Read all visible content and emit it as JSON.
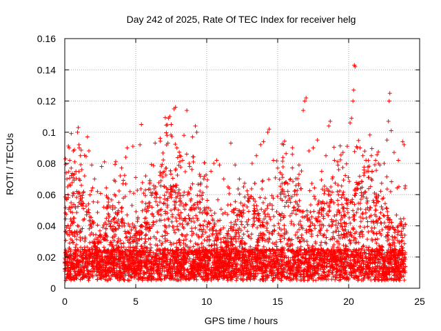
{
  "chart_data": {
    "type": "scatter",
    "title": "Day 242 of 2025, Rate Of TEC Index for receiver helg",
    "xlabel": "GPS time / hours",
    "ylabel": "ROTI / TECUs",
    "xlim": [
      0,
      25
    ],
    "ylim": [
      0,
      0.16
    ],
    "x_ticks": [
      0,
      5,
      10,
      15,
      20,
      25
    ],
    "y_ticks": [
      0,
      0.02,
      0.04,
      0.06,
      0.08,
      0.1,
      0.12,
      0.14,
      0.16
    ],
    "x_tick_labels": [
      "0",
      "5",
      "10",
      "15",
      "20",
      "25"
    ],
    "y_tick_labels": [
      "0",
      "0.02",
      "0.04",
      "0.06",
      "0.08",
      "0.1",
      "0.12",
      "0.14",
      "0.16"
    ],
    "grid": true,
    "marker": "+",
    "color": "#ff0000",
    "data_range_x": [
      0,
      24
    ],
    "series": [
      {
        "points": [
          [
            0.05,
            0.083
          ],
          [
            0.1,
            0.074
          ],
          [
            0.15,
            0.07
          ],
          [
            0.2,
            0.065
          ],
          [
            0.25,
            0.058
          ],
          [
            0.3,
            0.09
          ],
          [
            0.35,
            0.082
          ],
          [
            0.45,
            0.077
          ],
          [
            0.6,
            0.088
          ],
          [
            0.7,
            0.081
          ],
          [
            0.9,
            0.1
          ],
          [
            0.95,
            0.103
          ],
          [
            1.0,
            0.092
          ],
          [
            1.1,
            0.085
          ],
          [
            1.2,
            0.076
          ],
          [
            1.4,
            0.072
          ],
          [
            1.6,
            0.097
          ],
          [
            1.7,
            0.088
          ],
          [
            1.9,
            0.079
          ],
          [
            2.1,
            0.07
          ],
          [
            2.3,
            0.062
          ],
          [
            2.6,
            0.078
          ],
          [
            2.8,
            0.081
          ],
          [
            3.0,
            0.058
          ],
          [
            3.2,
            0.052
          ],
          [
            3.5,
            0.06
          ],
          [
            3.8,
            0.055
          ],
          [
            4.1,
            0.067
          ],
          [
            4.3,
            0.084
          ],
          [
            4.4,
            0.09
          ],
          [
            4.6,
            0.062
          ],
          [
            4.8,
            0.091
          ],
          [
            5.0,
            0.071
          ],
          [
            5.3,
            0.092
          ],
          [
            5.4,
            0.105
          ],
          [
            5.7,
            0.072
          ],
          [
            6.0,
            0.068
          ],
          [
            6.2,
            0.061
          ],
          [
            6.4,
            0.065
          ],
          [
            6.7,
            0.058
          ],
          [
            7.0,
            0.075
          ],
          [
            7.2,
            0.098
          ],
          [
            7.3,
            0.109
          ],
          [
            7.4,
            0.11
          ],
          [
            7.5,
            0.105
          ],
          [
            7.7,
            0.115
          ],
          [
            7.8,
            0.116
          ],
          [
            7.9,
            0.09
          ],
          [
            8.1,
            0.085
          ],
          [
            8.3,
            0.082
          ],
          [
            8.4,
            0.098
          ],
          [
            8.6,
            0.114
          ],
          [
            8.8,
            0.078
          ],
          [
            9.0,
            0.097
          ],
          [
            9.2,
            0.104
          ],
          [
            9.3,
            0.1
          ],
          [
            9.5,
            0.073
          ],
          [
            9.8,
            0.07
          ],
          [
            10.0,
            0.065
          ],
          [
            10.3,
            0.075
          ],
          [
            10.5,
            0.08
          ],
          [
            10.7,
            0.082
          ],
          [
            10.9,
            0.079
          ],
          [
            11.2,
            0.07
          ],
          [
            11.5,
            0.065
          ],
          [
            11.7,
            0.093
          ],
          [
            12.0,
            0.079
          ],
          [
            12.3,
            0.07
          ],
          [
            12.6,
            0.065
          ],
          [
            12.9,
            0.06
          ],
          [
            13.2,
            0.08
          ],
          [
            13.5,
            0.085
          ],
          [
            13.8,
            0.092
          ],
          [
            14.0,
            0.094
          ],
          [
            14.3,
            0.1
          ],
          [
            14.4,
            0.102
          ],
          [
            14.7,
            0.082
          ],
          [
            15.0,
            0.077
          ],
          [
            15.3,
            0.073
          ],
          [
            15.6,
            0.068
          ],
          [
            15.9,
            0.07
          ],
          [
            16.2,
            0.06
          ],
          [
            16.5,
            0.079
          ],
          [
            16.8,
            0.114
          ],
          [
            16.9,
            0.12
          ],
          [
            17.0,
            0.122
          ],
          [
            17.2,
            0.088
          ],
          [
            17.5,
            0.09
          ],
          [
            17.8,
            0.095
          ],
          [
            18.1,
            0.075
          ],
          [
            18.4,
            0.085
          ],
          [
            18.6,
            0.104
          ],
          [
            18.7,
            0.107
          ],
          [
            19.0,
            0.082
          ],
          [
            19.3,
            0.076
          ],
          [
            19.6,
            0.087
          ],
          [
            19.9,
            0.091
          ],
          [
            20.1,
            0.106
          ],
          [
            20.2,
            0.109
          ],
          [
            20.3,
            0.12
          ],
          [
            20.35,
            0.127
          ],
          [
            20.4,
            0.143
          ],
          [
            20.45,
            0.142
          ],
          [
            20.6,
            0.09
          ],
          [
            20.8,
            0.09
          ],
          [
            21.0,
            0.085
          ],
          [
            21.3,
            0.075
          ],
          [
            21.6,
            0.07
          ],
          [
            21.9,
            0.082
          ],
          [
            22.2,
            0.079
          ],
          [
            22.5,
            0.08
          ],
          [
            22.7,
            0.095
          ],
          [
            22.8,
            0.107
          ],
          [
            22.85,
            0.12
          ],
          [
            22.9,
            0.125
          ],
          [
            23.0,
            0.101
          ],
          [
            23.2,
            0.087
          ],
          [
            23.5,
            0.082
          ],
          [
            23.8,
            0.094
          ],
          [
            23.9,
            0.092
          ]
        ]
      }
    ]
  }
}
